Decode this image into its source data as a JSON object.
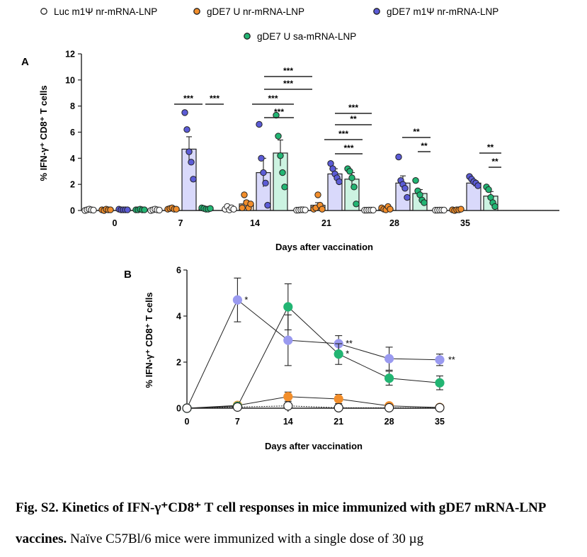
{
  "legend": [
    {
      "name": "Luc m1Ψ nr-mRNA-LNP",
      "color": "#ffffff"
    },
    {
      "name": "gDE7 U nr-mRNA-LNP",
      "color": "#f28e2b"
    },
    {
      "name": "gDE7 m1Ψ nr-mRNA-LNP",
      "color": "#5b5bd6"
    },
    {
      "name": "gDE7 U sa-mRNA-LNP",
      "color": "#22b573"
    }
  ],
  "colors": {
    "luc": "#ffffff",
    "gde7_u": "#f28e2b",
    "gde7_m1": "#5b5bd6",
    "gde7_m1_light": "#9a9af0",
    "gde7_sa": "#22b573",
    "bar_fill_m1": "#d9d9fb",
    "bar_fill_sa": "#ccf3e1"
  },
  "panelA": {
    "letter": "A",
    "ylabel": "% IFN-γ⁺ CD8⁺ T cells",
    "xlabel": "Days after vaccination",
    "sig": {
      "three": "***",
      "two": "**"
    }
  },
  "panelB": {
    "letter": "B",
    "ylabel": "% IFN-γ⁺ CD8⁺ T cells",
    "xlabel": "Days after vaccination",
    "markers": {
      "one": "*",
      "two": "**"
    }
  },
  "caption": {
    "title": "Fig. S2. Kinetics of IFN-γ⁺CD8⁺ T cell responses in mice immunized with gDE7 mRNA-LNP vaccines.",
    "text": "Naïve C57Bl/6 mice were immunized with a single dose of 30 µg"
  },
  "chart_data": [
    {
      "type": "bar",
      "title": "",
      "xlabel": "Days after vaccination",
      "ylabel": "% IFN-γ⁺ CD8⁺ T cells",
      "categories": [
        "0",
        "7",
        "14",
        "21",
        "28",
        "35"
      ],
      "ylim": [
        0,
        12
      ],
      "yticks": [
        0,
        2,
        4,
        6,
        8,
        10,
        12
      ],
      "series": [
        {
          "name": "Luc m1Ψ nr-mRNA-LNP",
          "values": [
            0.05,
            0.05,
            0.15,
            0.05,
            0.03,
            0.03
          ],
          "err": [
            0.02,
            0.02,
            0.05,
            0.02,
            0.01,
            0.01
          ],
          "points": [
            [
              0.0,
              0.05,
              0.1,
              0.05,
              0.03
            ],
            [
              0.0,
              0.05,
              0.1,
              0.05,
              0.03
            ],
            [
              0.1,
              0.3,
              0.05,
              0.2,
              0.1
            ],
            [
              0.02,
              0.03,
              0.05,
              0.05,
              0.04
            ],
            [
              0.02,
              0.02,
              0.03,
              0.03,
              0.03
            ],
            [
              0.02,
              0.02,
              0.03,
              0.03,
              0.03
            ]
          ]
        },
        {
          "name": "gDE7 U nr-mRNA-LNP",
          "values": [
            0.05,
            0.15,
            0.5,
            0.4,
            0.1,
            0.05
          ],
          "err": [
            0.02,
            0.05,
            0.25,
            0.2,
            0.05,
            0.02
          ],
          "points": [
            [
              0.05,
              0.0,
              0.1,
              0.05,
              0.05
            ],
            [
              0.1,
              0.15,
              0.2,
              0.1,
              0.1
            ],
            [
              0.2,
              1.2,
              0.6,
              0.2,
              0.5
            ],
            [
              0.1,
              0.2,
              1.2,
              0.4,
              0.1
            ],
            [
              0.2,
              0.1,
              0.05,
              0.3,
              0.1
            ],
            [
              0.05,
              0.0,
              0.05,
              0.05,
              0.1
            ]
          ]
        },
        {
          "name": "gDE7 m1Ψ nr-mRNA-LNP",
          "values": [
            0.05,
            4.7,
            2.9,
            2.8,
            2.1,
            2.1
          ],
          "err": [
            0.02,
            0.95,
            1.1,
            0.4,
            0.55,
            0.25
          ],
          "points": [
            [
              0.1,
              0.05,
              0.05,
              0.05,
              0.05
            ],
            [
              7.5,
              6.2,
              4.5,
              3.7,
              2.4
            ],
            [
              6.6,
              4.0,
              2.9,
              2.1,
              0.4
            ],
            [
              3.6,
              3.2,
              2.8,
              2.5,
              2.2
            ],
            [
              4.1,
              2.3,
              2.0,
              1.7,
              1.0
            ],
            [
              2.6,
              2.4,
              2.2,
              2.1,
              1.9
            ]
          ]
        },
        {
          "name": "gDE7 U sa-mRNA-LNP",
          "values": [
            0.05,
            0.1,
            4.4,
            2.4,
            1.3,
            1.1
          ],
          "err": [
            0.02,
            0.05,
            1.0,
            0.5,
            0.3,
            0.35
          ],
          "points": [
            [
              0.05,
              0.05,
              0.1,
              0.05,
              0.05
            ],
            [
              0.2,
              0.15,
              0.1,
              0.1,
              0.15
            ],
            [
              7.3,
              5.7,
              4.2,
              2.9,
              1.8
            ],
            [
              3.2,
              3.0,
              2.5,
              1.8,
              0.5
            ],
            [
              2.3,
              1.5,
              1.2,
              0.8,
              0.6
            ],
            [
              1.8,
              1.6,
              1.0,
              0.6,
              0.3
            ]
          ]
        }
      ]
    },
    {
      "type": "line",
      "title": "",
      "xlabel": "Days after vaccination",
      "ylabel": "% IFN-γ⁺ CD8⁺ T cells",
      "x": [
        0,
        7,
        14,
        21,
        28,
        35
      ],
      "ylim": [
        0,
        6
      ],
      "yticks": [
        0,
        2,
        4,
        6
      ],
      "series": [
        {
          "name": "Luc m1Ψ nr-mRNA-LNP",
          "values": [
            0.0,
            0.05,
            0.1,
            0.02,
            0.02,
            0.02
          ],
          "err": [
            0.02,
            0.02,
            0.08,
            0.02,
            0.02,
            0.02
          ]
        },
        {
          "name": "gDE7 U nr-mRNA-LNP",
          "values": [
            0.0,
            0.12,
            0.5,
            0.4,
            0.1,
            0.03
          ],
          "err": [
            0.02,
            0.05,
            0.2,
            0.2,
            0.05,
            0.02
          ]
        },
        {
          "name": "gDE7 m1Ψ nr-mRNA-LNP",
          "values": [
            0.0,
            4.7,
            2.95,
            2.8,
            2.15,
            2.1
          ],
          "err": [
            0.02,
            0.95,
            1.1,
            0.35,
            0.5,
            0.25
          ]
        },
        {
          "name": "gDE7 U sa-mRNA-LNP",
          "values": [
            0.0,
            0.08,
            4.4,
            2.35,
            1.3,
            1.1
          ],
          "err": [
            0.02,
            0.05,
            1.0,
            0.45,
            0.3,
            0.3
          ]
        }
      ]
    }
  ]
}
